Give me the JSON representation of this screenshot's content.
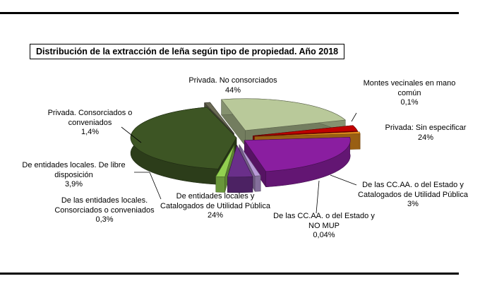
{
  "chart_data": {
    "type": "pie",
    "title": "Distribución de la extracción de leña según tipo de propiedad. Año 2018",
    "style": "exploded-3d",
    "slices": [
      {
        "label": "Privada. No consorciados",
        "value_label": "44%",
        "value": 44,
        "color": "#3d5524"
      },
      {
        "label": "Montes vecinales en mano común",
        "value_label": "0,1%",
        "value": 0.1,
        "color": "#6b6b55"
      },
      {
        "label": "Privada: Sin especificar",
        "value_label": "24%",
        "value": 24,
        "color": "#b9c99a"
      },
      {
        "label": "De las CC.AA. o del Estado y Catalogados de Utilidad Pública",
        "value_label": "3%",
        "value": 3,
        "color": "#c00000"
      },
      {
        "label": "De las CC.AA. o del Estado y NO MUP",
        "value_label": "0,04%",
        "value": 0.04,
        "color": "#f79a1e"
      },
      {
        "label": "De entidades locales y Catalogados de Utilidad Pública",
        "value_label": "24%",
        "value": 24,
        "color": "#8a1ea0"
      },
      {
        "label": "De las entidades locales. Consorciados o conveniados",
        "value_label": "0,3%",
        "value": 0.3,
        "color": "#b89ad8"
      },
      {
        "label": "De entidades locales. De libre disposición",
        "value_label": "3,9%",
        "value": 3.9,
        "color": "#6a2f8a"
      },
      {
        "label": "Privada. Consorciados o conveniados",
        "value_label": "1,4%",
        "value": 1.4,
        "color": "#92d050"
      }
    ]
  },
  "labels": {
    "privada_no_consorciados": "Privada. No consorciados\n44%",
    "montes_vecinales": "Montes vecinales en mano\ncomún\n0,1%",
    "privada_sin_especificar": "Privada: Sin especificar\n24%",
    "ccaa_mup": "De las CC.AA. o del Estado y\nCatalogados de Utilidad Pública\n3%",
    "ccaa_no_mup": "De las CC.AA. o del Estado y\nNO MUP\n0,04%",
    "entidades_mup": "De entidades locales y\nCatalogados de Utilidad Pública\n24%",
    "entidades_consorciados": "De las entidades locales.\nConsorciados o conveniados\n0,3%",
    "entidades_libre": "De entidades locales. De libre\ndisposición\n3,9%",
    "privada_consorciados": "Privada. Consorciados o\nconveniados\n1,4%"
  }
}
